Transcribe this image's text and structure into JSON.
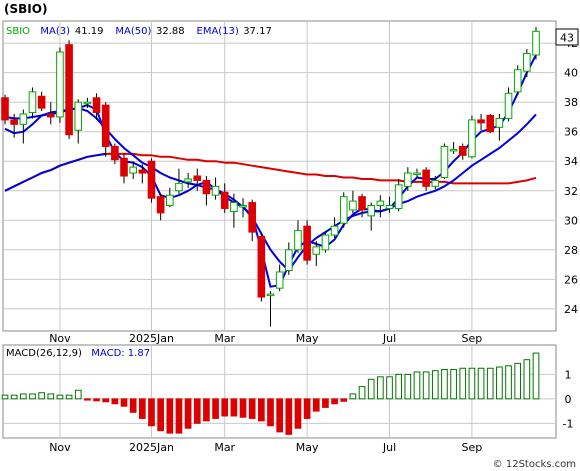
{
  "header": {
    "ticker": "(SBIO)"
  },
  "colors": {
    "up": "#00aa00",
    "down": "#dd0000",
    "price_line": "#0000dd",
    "ma50": "#dd0000",
    "ema13": "#0000dd",
    "grid": "#c8c8c8",
    "macd_up": "#007700",
    "macd_down": "#dd0000"
  },
  "chart_data": [
    {
      "type": "candlestick",
      "legend": [
        {
          "label": "SBIO",
          "color": "#00aa00"
        },
        {
          "label": "MA(3)",
          "value": "41.19",
          "color": "#0000dd"
        },
        {
          "label": "MA(50)",
          "value": "32.88",
          "color": "#0000dd"
        },
        {
          "label": "EMA(13)",
          "value": "37.17",
          "color": "#0000dd"
        }
      ],
      "last_price_label": "43",
      "ylim": [
        22.5,
        43.5
      ],
      "y_ticks": [
        24,
        26,
        28,
        30,
        32,
        34,
        36,
        38,
        40,
        42
      ],
      "x_labels": [
        {
          "label": "Nov",
          "bar": 6
        },
        {
          "label": "2025Jan",
          "bar": 16
        },
        {
          "label": "Mar",
          "bar": 24
        },
        {
          "label": "May",
          "bar": 33
        },
        {
          "label": "Jul",
          "bar": 42
        },
        {
          "label": "Sep",
          "bar": 51
        }
      ],
      "grid": true,
      "candles": [
        [
          38.3,
          36.8,
          38.5,
          36.5
        ],
        [
          36.8,
          36.5,
          37.2,
          35.6
        ],
        [
          36.5,
          37.2,
          37.5,
          35.2
        ],
        [
          37.3,
          38.7,
          39.0,
          36.9
        ],
        [
          38.4,
          37.6,
          38.7,
          37.4
        ],
        [
          37.2,
          37.0,
          38.0,
          36.5
        ],
        [
          37.0,
          41.4,
          41.7,
          36.6
        ],
        [
          41.9,
          35.8,
          42.2,
          35.5
        ],
        [
          36.1,
          38.0,
          38.2,
          35.2
        ],
        [
          38.0,
          38.0,
          38.3,
          37.6
        ],
        [
          38.3,
          37.3,
          38.6,
          36.8
        ],
        [
          37.8,
          35.0,
          38.0,
          34.3
        ],
        [
          35.0,
          34.1,
          35.2,
          33.8
        ],
        [
          34.2,
          33.0,
          34.5,
          32.5
        ],
        [
          33.2,
          33.6,
          34.0,
          32.8
        ],
        [
          33.4,
          33.2,
          33.8,
          32.5
        ],
        [
          34.0,
          31.5,
          34.2,
          31.2
        ],
        [
          31.6,
          30.5,
          31.8,
          30.0
        ],
        [
          31.0,
          31.7,
          32.2,
          30.9
        ],
        [
          32.0,
          32.5,
          33.5,
          31.8
        ],
        [
          32.6,
          32.8,
          33.2,
          32.2
        ],
        [
          33.0,
          32.7,
          33.5,
          32.0
        ],
        [
          32.7,
          31.8,
          33.0,
          31.0
        ],
        [
          31.7,
          32.3,
          32.9,
          31.4
        ],
        [
          31.9,
          30.8,
          32.5,
          30.5
        ],
        [
          30.6,
          31.2,
          31.8,
          29.5
        ],
        [
          31.0,
          31.0,
          31.5,
          30.2
        ],
        [
          31.2,
          29.2,
          31.4,
          28.6
        ],
        [
          28.9,
          24.8,
          29.1,
          24.5
        ],
        [
          24.9,
          25.0,
          25.2,
          22.8
        ],
        [
          25.4,
          26.5,
          27.0,
          25.2
        ],
        [
          26.6,
          28.0,
          28.5,
          26.3
        ],
        [
          28.0,
          29.3,
          30.0,
          27.8
        ],
        [
          29.6,
          27.3,
          30.0,
          27.0
        ],
        [
          27.7,
          28.2,
          28.6,
          26.9
        ],
        [
          28.0,
          29.0,
          29.2,
          27.8
        ],
        [
          29.0,
          29.6,
          30.2,
          28.8
        ],
        [
          29.8,
          31.6,
          31.9,
          29.5
        ],
        [
          30.7,
          31.3,
          32.0,
          30.5
        ],
        [
          31.6,
          30.7,
          31.8,
          30.2
        ],
        [
          30.3,
          31.0,
          31.2,
          29.3
        ],
        [
          31.0,
          31.3,
          31.7,
          30.2
        ],
        [
          30.8,
          31.0,
          31.6,
          30.5
        ],
        [
          30.8,
          32.4,
          32.8,
          30.6
        ],
        [
          32.3,
          33.2,
          33.6,
          32.0
        ],
        [
          33.1,
          33.2,
          33.5,
          32.9
        ],
        [
          33.4,
          32.3,
          33.6,
          32.0
        ],
        [
          32.3,
          32.7,
          33.0,
          32.1
        ],
        [
          32.9,
          35.0,
          35.2,
          32.8
        ],
        [
          34.7,
          34.8,
          35.3,
          34.5
        ],
        [
          35.0,
          34.4,
          35.2,
          34.1
        ],
        [
          34.3,
          36.8,
          37.1,
          34.2
        ],
        [
          36.8,
          36.6,
          37.2,
          36.1
        ],
        [
          37.1,
          36.0,
          37.2,
          35.9
        ],
        [
          36.3,
          36.9,
          37.2,
          35.4
        ],
        [
          36.9,
          38.6,
          39.0,
          36.7
        ],
        [
          38.7,
          40.2,
          40.5,
          38.5
        ],
        [
          40.1,
          41.3,
          41.6,
          39.7
        ],
        [
          41.2,
          42.8,
          43.1,
          40.9
        ]
      ],
      "ma3": [
        36.2,
        35.9,
        36.0,
        36.5,
        37.1,
        37.3,
        37.4,
        37.5,
        37.6,
        37.8,
        37.5,
        35.8,
        34.6,
        34.0,
        33.9,
        33.6,
        33.0,
        31.7,
        31.5,
        31.7,
        32.0,
        32.4,
        32.6,
        32.1,
        31.6,
        31.2,
        30.9,
        30.3,
        28.0,
        25.5,
        25.6,
        27.0,
        28.2,
        28.6,
        28.4,
        28.2,
        28.7,
        29.7,
        30.4,
        30.8,
        30.7,
        30.6,
        30.8,
        31.5,
        32.3,
        32.9,
        32.8,
        32.8,
        33.3,
        34.0,
        34.6,
        35.4,
        36.0,
        36.2,
        36.4,
        37.3,
        38.6,
        40.0,
        41.2
      ],
      "ma50": [
        32.0,
        32.3,
        32.6,
        32.9,
        33.2,
        33.4,
        33.7,
        33.9,
        34.1,
        34.3,
        34.4,
        34.5,
        34.5,
        34.5,
        34.5,
        34.4,
        34.4,
        34.3,
        34.3,
        34.2,
        34.1,
        34.1,
        34.0,
        34.0,
        33.9,
        33.9,
        33.8,
        33.7,
        33.6,
        33.5,
        33.4,
        33.3,
        33.2,
        33.1,
        33.1,
        33.0,
        33.0,
        32.9,
        32.9,
        32.8,
        32.8,
        32.7,
        32.7,
        32.7,
        32.6,
        32.6,
        32.6,
        32.6,
        32.6,
        32.5,
        32.5,
        32.5,
        32.5,
        32.5,
        32.5,
        32.5,
        32.6,
        32.7,
        32.88
      ],
      "ema13": [
        37.0,
        36.9,
        36.9,
        37.0,
        37.1,
        37.2,
        37.3,
        37.5,
        37.6,
        37.4,
        36.9,
        36.2,
        35.5,
        34.9,
        34.4,
        33.9,
        33.6,
        33.2,
        32.9,
        32.7,
        32.5,
        32.4,
        32.2,
        32.1,
        31.8,
        31.4,
        30.9,
        30.2,
        29.1,
        28.0,
        27.2,
        26.6,
        27.5,
        28.3,
        28.8,
        29.2,
        29.6,
        30.0,
        30.3,
        30.5,
        30.6,
        30.6,
        30.8,
        31.1,
        31.3,
        31.6,
        31.8,
        32.0,
        32.3,
        32.7,
        33.2,
        33.7,
        34.1,
        34.5,
        34.9,
        35.4,
        35.9,
        36.5,
        37.17
      ]
    },
    {
      "type": "bar",
      "legend": [
        {
          "label": "MACD(26,12,9)",
          "color": "#000000"
        },
        {
          "label": "MACD:",
          "value": "1.87",
          "color": "#0000dd"
        }
      ],
      "ylim": [
        -1.6,
        2.2
      ],
      "y_ticks": [
        -1,
        0,
        1
      ],
      "x_labels": [
        {
          "label": "Nov",
          "bar": 6
        },
        {
          "label": "2025Jan",
          "bar": 16
        },
        {
          "label": "Mar",
          "bar": 24
        },
        {
          "label": "May",
          "bar": 33
        },
        {
          "label": "Jul",
          "bar": 42
        },
        {
          "label": "Sep",
          "bar": 51
        }
      ],
      "grid": true,
      "values": [
        0.15,
        0.15,
        0.2,
        0.2,
        0.25,
        0.2,
        0.15,
        0.15,
        0.35,
        -0.05,
        -0.08,
        -0.12,
        -0.2,
        -0.3,
        -0.55,
        -0.8,
        -1.1,
        -1.3,
        -1.4,
        -1.4,
        -1.2,
        -1.0,
        -0.9,
        -0.8,
        -0.7,
        -0.7,
        -0.75,
        -0.8,
        -0.9,
        -1.1,
        -1.35,
        -1.45,
        -1.2,
        -0.8,
        -0.5,
        -0.35,
        -0.2,
        -0.1,
        0.2,
        0.5,
        0.8,
        0.9,
        0.9,
        1.0,
        1.0,
        1.1,
        1.1,
        1.15,
        1.2,
        1.2,
        1.25,
        1.25,
        1.25,
        1.25,
        1.3,
        1.35,
        1.45,
        1.6,
        1.87
      ]
    }
  ],
  "watermark": "© 12Stocks.com"
}
